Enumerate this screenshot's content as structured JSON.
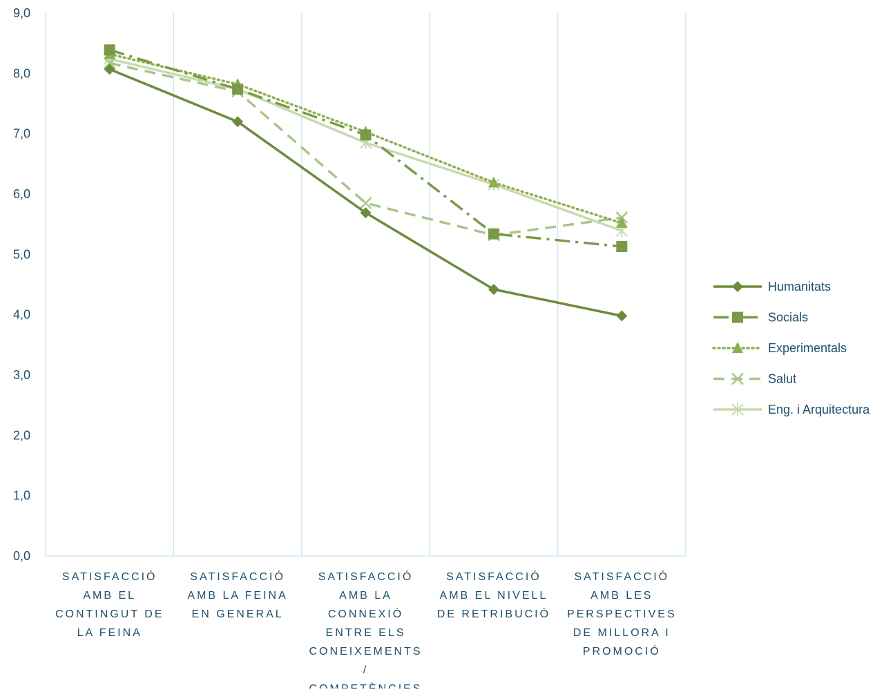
{
  "chart_data": {
    "type": "line",
    "categories": [
      [
        "SATISFACCIÓ",
        "AMB EL",
        "CONTINGUT DE",
        "LA FEINA"
      ],
      [
        "SATISFACCIÓ",
        "AMB LA FEINA",
        "EN GENERAL"
      ],
      [
        "SATISFACCIÓ",
        "AMB LA",
        "CONNEXIÓ",
        "ENTRE ELS",
        "CONEIXEMENTS",
        "/",
        "COMPETÈNCIES"
      ],
      [
        "SATISFACCIÓ",
        "AMB EL NIVELL",
        "DE RETRIBUCIÓ"
      ],
      [
        "SATISFACCIÓ",
        "AMB LES",
        "PERSPECTIVES",
        "DE MILLORA I",
        "PROMOCIÓ"
      ]
    ],
    "ylim": [
      0,
      9
    ],
    "yticks": [
      "0,0",
      "1,0",
      "2,0",
      "3,0",
      "4,0",
      "5,0",
      "6,0",
      "7,0",
      "8,0",
      "9,0"
    ],
    "grid": "vertical",
    "legend_position": "right",
    "series": [
      {
        "name": "Humanitats",
        "values": [
          8.07,
          7.2,
          5.69,
          4.42,
          3.98
        ],
        "color": "#6d8b3c",
        "dash": "solid",
        "marker": "diamond"
      },
      {
        "name": "Socials",
        "values": [
          8.39,
          7.74,
          6.98,
          5.34,
          5.13
        ],
        "color": "#7a9a48",
        "dash": "dashdot",
        "marker": "square"
      },
      {
        "name": "Experimentals",
        "values": [
          8.32,
          7.82,
          7.03,
          6.19,
          5.52
        ],
        "color": "#8caf4f",
        "dash": "dotted",
        "marker": "triangle"
      },
      {
        "name": "Salut",
        "values": [
          8.17,
          7.7,
          5.85,
          5.32,
          5.61
        ],
        "color": "#a9c58a",
        "dash": "dashed",
        "marker": "x"
      },
      {
        "name": "Eng. i Arquitectura",
        "values": [
          8.24,
          7.74,
          6.85,
          6.16,
          5.39
        ],
        "color": "#c8dab0",
        "dash": "solid",
        "marker": "star"
      }
    ],
    "colors": {
      "gridline": "#c6e2f2",
      "axis_text": "#1f4e6b"
    }
  }
}
